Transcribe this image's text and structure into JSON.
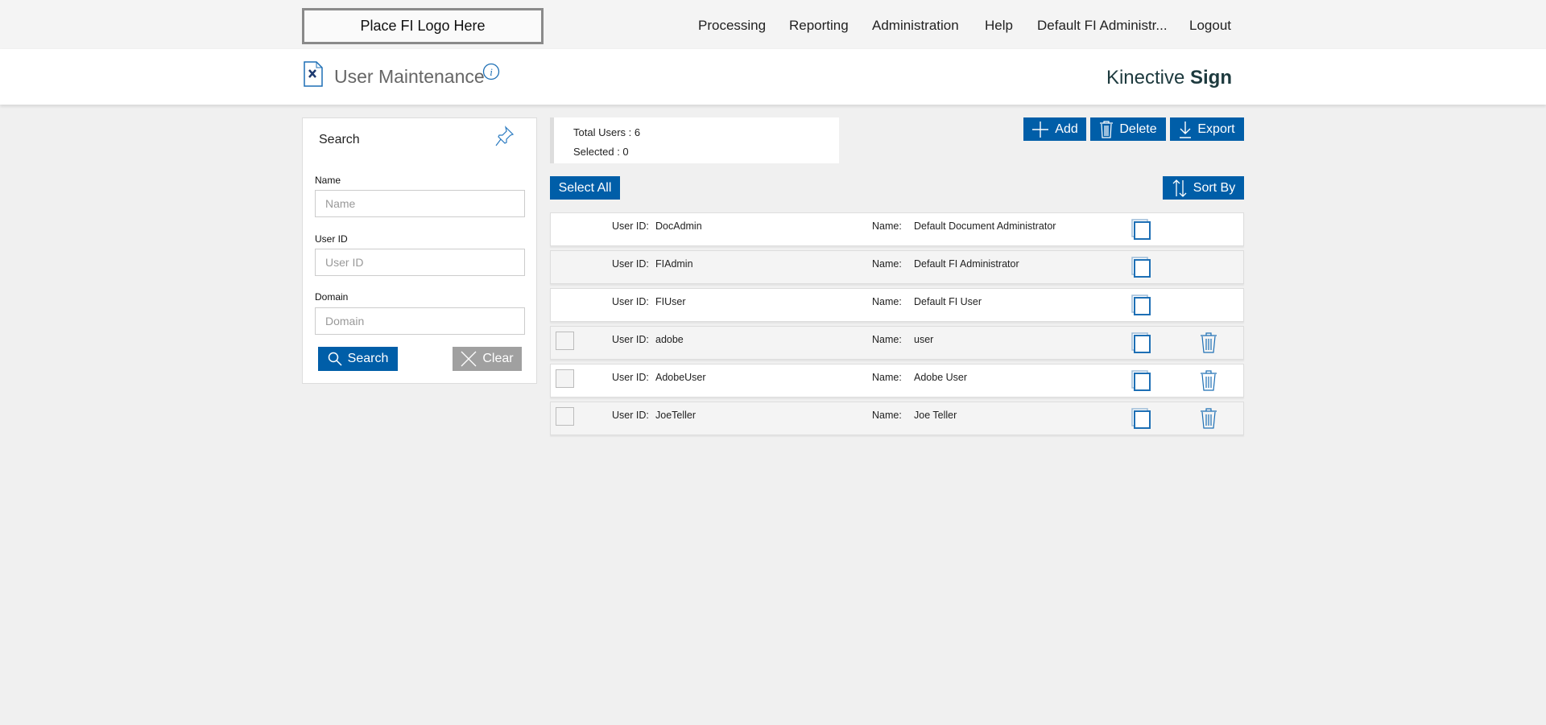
{
  "topbar": {
    "logo": "Place FI Logo Here",
    "nav": [
      "Processing",
      "Reporting",
      "Administration",
      "Help",
      "Default FI Administr...",
      "Logout"
    ]
  },
  "header": {
    "title": "User Maintenance",
    "brand_light": "Kinective",
    "brand_bold": "Sign"
  },
  "search": {
    "title": "Search",
    "fields": [
      {
        "label": "Name",
        "placeholder": "Name",
        "value": ""
      },
      {
        "label": "User ID",
        "placeholder": "User ID",
        "value": ""
      },
      {
        "label": "Domain",
        "placeholder": "Domain",
        "value": ""
      }
    ],
    "search_label": "Search",
    "clear_label": "Clear"
  },
  "stats": {
    "total": "Total Users : 6",
    "selected": "Selected : 0"
  },
  "toolbar": {
    "add": "Add",
    "delete": "Delete",
    "export": "Export",
    "select_all": "Select All",
    "sort_by": "Sort By"
  },
  "labels": {
    "user_id": "User ID:",
    "name": "Name:"
  },
  "users": [
    {
      "id": "DocAdmin",
      "name": "Default Document Administrator",
      "selectable": false
    },
    {
      "id": "FIAdmin",
      "name": "Default FI Administrator",
      "selectable": false
    },
    {
      "id": "FIUser",
      "name": "Default FI User",
      "selectable": false
    },
    {
      "id": "adobe",
      "name": "user",
      "selectable": true
    },
    {
      "id": "AdobeUser",
      "name": "Adobe User",
      "selectable": true
    },
    {
      "id": "JoeTeller",
      "name": "Joe Teller",
      "selectable": true
    }
  ],
  "colors": {
    "accent": "#005ea8",
    "clear_button": "#a0a0a0"
  }
}
